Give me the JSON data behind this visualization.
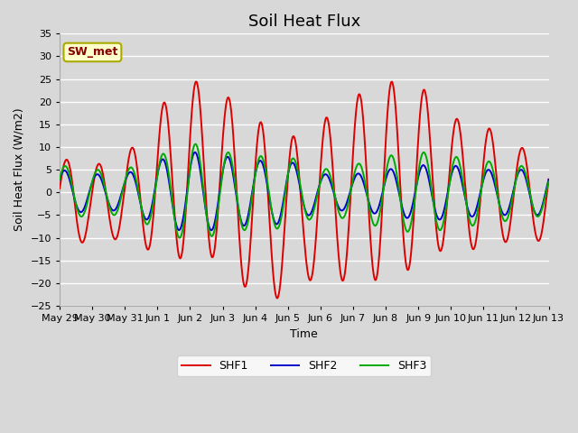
{
  "title": "Soil Heat Flux",
  "ylabel": "Soil Heat Flux (W/m2)",
  "xlabel": "Time",
  "legend_label": "SW_met",
  "series_labels": [
    "SHF1",
    "SHF2",
    "SHF3"
  ],
  "series_colors": [
    "#dd0000",
    "#0000cc",
    "#00aa00"
  ],
  "ylim": [
    -25,
    35
  ],
  "yticks": [
    -25,
    -20,
    -15,
    -10,
    -5,
    0,
    5,
    10,
    15,
    20,
    25,
    30,
    35
  ],
  "bg_color": "#d8d8d8",
  "plot_bg_color": "#d8d8d8",
  "xtick_labels": [
    "May 29",
    "May 30",
    "May 31",
    "Jun 1",
    "Jun 2",
    "Jun 3",
    "Jun 4",
    "Jun 5",
    "Jun 6",
    "Jun 7",
    "Jun 8",
    "Jun 9",
    "Jun 10",
    "Jun 11",
    "Jun 12",
    "Jun 13"
  ],
  "title_fontsize": 13,
  "label_fontsize": 9,
  "tick_fontsize": 8,
  "linewidth": 1.4,
  "legend_box_facecolor": "#ffffcc",
  "legend_box_edgecolor": "#aaaa00",
  "legend_text_color": "#880000"
}
